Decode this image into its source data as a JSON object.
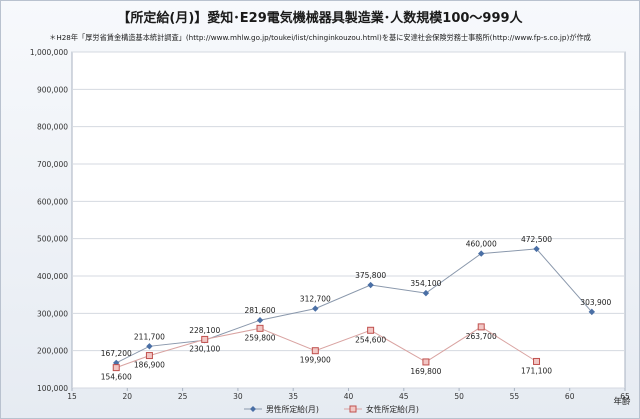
{
  "chart_data": {
    "type": "line",
    "title": "【所定給(月)】愛知･E29電気機械器具製造業･人数規模100～999人",
    "subtitle": "＊H28年「厚労省賃金構造基本統計調査」(http://www.mhlw.go.jp/toukei/list/chinginkouzou.html)を基に安達社会保険労務士事務所(http://www.fp-s.co.jp)が作成",
    "xlabel": "年齢",
    "ylabel": "",
    "xlim": [
      15,
      65
    ],
    "ylim": [
      100000,
      1000000
    ],
    "x_ticks": [
      "15",
      "20",
      "25",
      "30",
      "35",
      "40",
      "45",
      "50",
      "55",
      "60",
      "65"
    ],
    "y_ticks": [
      "100,000",
      "200,000",
      "300,000",
      "400,000",
      "500,000",
      "600,000",
      "700,000",
      "800,000",
      "900,000",
      "1,000,000"
    ],
    "grid": true,
    "legend_position": "bottom",
    "series": [
      {
        "name": "男性所定給(月)",
        "color": "#4a6fa5",
        "marker": "diamond",
        "x": [
          19,
          22,
          27,
          32,
          37,
          42,
          47,
          52,
          57,
          62
        ],
        "values": [
          167200,
          211700,
          228100,
          281600,
          312700,
          375800,
          354100,
          460000,
          472500,
          303900
        ],
        "labels": [
          "167,200",
          "211,700",
          "228,100",
          "281,600",
          "312,700",
          "375,800",
          "354,100",
          "460,000",
          "472,500",
          "303,900"
        ]
      },
      {
        "name": "女性所定給(月)",
        "color": "#c0504d",
        "marker": "square",
        "x": [
          19,
          22,
          27,
          32,
          37,
          42,
          47,
          52,
          57
        ],
        "values": [
          154600,
          186900,
          230100,
          259800,
          199900,
          254600,
          169800,
          263700,
          171100
        ],
        "labels": [
          "154,600",
          "186,900",
          "230,100",
          "259,800",
          "199,900",
          "254,600",
          "169,800",
          "263,700",
          "171,100"
        ]
      }
    ]
  }
}
